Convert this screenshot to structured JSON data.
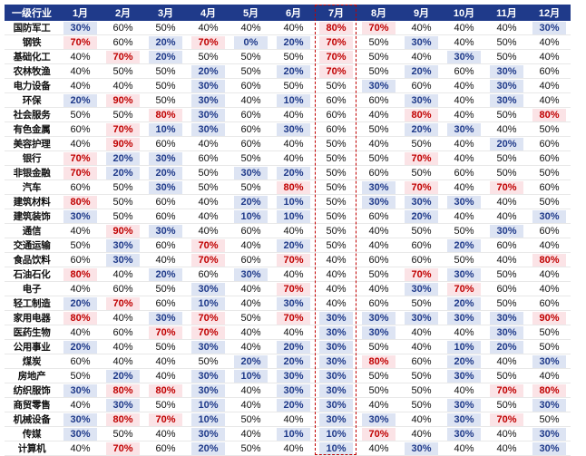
{
  "table": {
    "header_first": "一级行业",
    "months": [
      "1月",
      "2月",
      "3月",
      "4月",
      "5月",
      "6月",
      "7月",
      "8月",
      "9月",
      "10月",
      "11月",
      "12月"
    ],
    "highlight_month_index": 6,
    "colors": {
      "header_bg": "#1f3a8a",
      "high_bg": "#fbe3e6",
      "high_text": "#c00000",
      "low_bg": "#dde4f3",
      "low_text": "#1f3a8a",
      "frame": "#c00000"
    },
    "rows": [
      {
        "industry": "国防军工",
        "values": [
          "30%",
          "60%",
          "50%",
          "40%",
          "40%",
          "40%",
          "80%",
          "70%",
          "40%",
          "40%",
          "40%",
          "30%"
        ]
      },
      {
        "industry": "钢铁",
        "values": [
          "70%",
          "60%",
          "20%",
          "70%",
          "0%",
          "20%",
          "70%",
          "50%",
          "30%",
          "40%",
          "50%",
          "40%"
        ]
      },
      {
        "industry": "基础化工",
        "values": [
          "40%",
          "70%",
          "20%",
          "50%",
          "50%",
          "50%",
          "70%",
          "50%",
          "40%",
          "30%",
          "50%",
          "40%"
        ]
      },
      {
        "industry": "农林牧渔",
        "values": [
          "40%",
          "50%",
          "50%",
          "20%",
          "50%",
          "20%",
          "70%",
          "50%",
          "20%",
          "60%",
          "30%",
          "60%"
        ]
      },
      {
        "industry": "电力设备",
        "values": [
          "40%",
          "40%",
          "50%",
          "30%",
          "60%",
          "50%",
          "50%",
          "30%",
          "60%",
          "40%",
          "30%",
          "40%"
        ]
      },
      {
        "industry": "环保",
        "values": [
          "20%",
          "90%",
          "50%",
          "30%",
          "40%",
          "10%",
          "60%",
          "60%",
          "30%",
          "40%",
          "30%",
          "40%"
        ]
      },
      {
        "industry": "社会服务",
        "values": [
          "50%",
          "50%",
          "80%",
          "30%",
          "60%",
          "40%",
          "60%",
          "40%",
          "80%",
          "40%",
          "50%",
          "80%"
        ]
      },
      {
        "industry": "有色金属",
        "values": [
          "60%",
          "70%",
          "10%",
          "30%",
          "60%",
          "30%",
          "60%",
          "50%",
          "20%",
          "30%",
          "40%",
          "50%"
        ]
      },
      {
        "industry": "美容护理",
        "values": [
          "40%",
          "90%",
          "60%",
          "40%",
          "60%",
          "40%",
          "50%",
          "40%",
          "50%",
          "40%",
          "20%",
          "60%"
        ]
      },
      {
        "industry": "银行",
        "values": [
          "70%",
          "20%",
          "30%",
          "60%",
          "50%",
          "40%",
          "50%",
          "50%",
          "70%",
          "40%",
          "50%",
          "60%"
        ]
      },
      {
        "industry": "非银金融",
        "values": [
          "70%",
          "20%",
          "20%",
          "50%",
          "30%",
          "20%",
          "50%",
          "60%",
          "50%",
          "60%",
          "50%",
          "50%"
        ]
      },
      {
        "industry": "汽车",
        "values": [
          "60%",
          "50%",
          "30%",
          "50%",
          "50%",
          "80%",
          "50%",
          "30%",
          "70%",
          "40%",
          "70%",
          "60%"
        ]
      },
      {
        "industry": "建筑材料",
        "values": [
          "80%",
          "50%",
          "60%",
          "40%",
          "20%",
          "10%",
          "50%",
          "30%",
          "30%",
          "30%",
          "40%",
          "50%"
        ]
      },
      {
        "industry": "建筑装饰",
        "values": [
          "30%",
          "50%",
          "60%",
          "40%",
          "10%",
          "10%",
          "50%",
          "60%",
          "20%",
          "40%",
          "40%",
          "30%"
        ]
      },
      {
        "industry": "通信",
        "values": [
          "40%",
          "90%",
          "30%",
          "40%",
          "60%",
          "40%",
          "50%",
          "40%",
          "50%",
          "50%",
          "30%",
          "60%"
        ]
      },
      {
        "industry": "交通运输",
        "values": [
          "50%",
          "30%",
          "60%",
          "70%",
          "40%",
          "20%",
          "50%",
          "40%",
          "60%",
          "20%",
          "60%",
          "40%"
        ]
      },
      {
        "industry": "食品饮料",
        "values": [
          "60%",
          "30%",
          "40%",
          "70%",
          "60%",
          "70%",
          "40%",
          "60%",
          "60%",
          "50%",
          "40%",
          "80%"
        ]
      },
      {
        "industry": "石油石化",
        "values": [
          "80%",
          "40%",
          "20%",
          "60%",
          "30%",
          "40%",
          "40%",
          "50%",
          "70%",
          "30%",
          "50%",
          "40%"
        ]
      },
      {
        "industry": "电子",
        "values": [
          "40%",
          "60%",
          "50%",
          "30%",
          "40%",
          "70%",
          "40%",
          "40%",
          "30%",
          "70%",
          "60%",
          "40%"
        ]
      },
      {
        "industry": "轻工制造",
        "values": [
          "20%",
          "70%",
          "60%",
          "10%",
          "40%",
          "30%",
          "40%",
          "60%",
          "50%",
          "20%",
          "50%",
          "60%"
        ]
      },
      {
        "industry": "家用电器",
        "values": [
          "80%",
          "40%",
          "30%",
          "70%",
          "50%",
          "70%",
          "30%",
          "30%",
          "30%",
          "30%",
          "30%",
          "90%"
        ]
      },
      {
        "industry": "医药生物",
        "values": [
          "40%",
          "60%",
          "70%",
          "70%",
          "40%",
          "40%",
          "30%",
          "30%",
          "40%",
          "40%",
          "30%",
          "50%"
        ]
      },
      {
        "industry": "公用事业",
        "values": [
          "20%",
          "40%",
          "50%",
          "30%",
          "40%",
          "20%",
          "30%",
          "50%",
          "40%",
          "10%",
          "20%",
          "50%"
        ]
      },
      {
        "industry": "煤炭",
        "values": [
          "60%",
          "40%",
          "40%",
          "50%",
          "20%",
          "20%",
          "30%",
          "80%",
          "60%",
          "20%",
          "40%",
          "30%"
        ]
      },
      {
        "industry": "房地产",
        "values": [
          "50%",
          "20%",
          "40%",
          "30%",
          "10%",
          "30%",
          "30%",
          "50%",
          "50%",
          "30%",
          "50%",
          "40%"
        ]
      },
      {
        "industry": "纺织服饰",
        "values": [
          "30%",
          "80%",
          "80%",
          "30%",
          "40%",
          "30%",
          "30%",
          "50%",
          "50%",
          "40%",
          "70%",
          "80%"
        ]
      },
      {
        "industry": "商贸零售",
        "values": [
          "40%",
          "30%",
          "50%",
          "10%",
          "40%",
          "20%",
          "30%",
          "40%",
          "50%",
          "30%",
          "50%",
          "30%"
        ]
      },
      {
        "industry": "机械设备",
        "values": [
          "30%",
          "80%",
          "70%",
          "10%",
          "50%",
          "40%",
          "30%",
          "30%",
          "40%",
          "30%",
          "70%",
          "50%"
        ]
      },
      {
        "industry": "传媒",
        "values": [
          "30%",
          "50%",
          "40%",
          "30%",
          "40%",
          "10%",
          "10%",
          "70%",
          "40%",
          "30%",
          "40%",
          "30%"
        ]
      },
      {
        "industry": "计算机",
        "values": [
          "40%",
          "70%",
          "60%",
          "20%",
          "50%",
          "40%",
          "10%",
          "40%",
          "30%",
          "40%",
          "40%",
          "30%"
        ]
      }
    ]
  }
}
